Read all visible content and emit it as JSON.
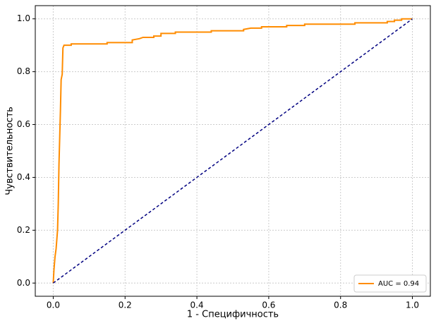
{
  "chart_data": {
    "type": "line",
    "xlabel": "1 - Специфичность",
    "ylabel": "Чувствительность",
    "xlim": [
      -0.05,
      1.05
    ],
    "ylim": [
      -0.05,
      1.05
    ],
    "xticks": [
      {
        "value": 0,
        "label": "0.0"
      },
      0.2,
      0.4,
      0.6,
      0.8,
      {
        "value": 1,
        "label": "1.0"
      }
    ],
    "yticks": [
      {
        "value": 0,
        "label": "0.0"
      },
      0.2,
      0.4,
      0.6,
      0.8,
      {
        "value": 1,
        "label": "1.0"
      }
    ],
    "grid": true,
    "legend": "lower right",
    "series": [
      {
        "name": "AUC = 0.94",
        "color": "#ff8c00",
        "dash": false,
        "x": [
          0,
          0.002,
          0.005,
          0.008,
          0.012,
          0.014,
          0.016,
          0.018,
          0.02,
          0.022,
          0.025,
          0.027,
          0.03,
          0.05,
          0.05,
          0.15,
          0.15,
          0.22,
          0.22,
          0.24,
          0.25,
          0.28,
          0.28,
          0.3,
          0.3,
          0.34,
          0.34,
          0.44,
          0.44,
          0.53,
          0.53,
          0.55,
          0.58,
          0.58,
          0.65,
          0.65,
          0.7,
          0.7,
          0.84,
          0.84,
          0.93,
          0.93,
          0.95,
          0.95,
          0.97,
          0.97,
          1
        ],
        "values": [
          0,
          0.05,
          0.1,
          0.13,
          0.2,
          0.3,
          0.45,
          0.55,
          0.65,
          0.77,
          0.79,
          0.89,
          0.9,
          0.9,
          0.905,
          0.905,
          0.91,
          0.91,
          0.92,
          0.925,
          0.93,
          0.93,
          0.935,
          0.935,
          0.945,
          0.945,
          0.95,
          0.95,
          0.955,
          0.955,
          0.96,
          0.965,
          0.965,
          0.97,
          0.97,
          0.975,
          0.975,
          0.98,
          0.98,
          0.985,
          0.985,
          0.99,
          0.99,
          0.995,
          0.995,
          1,
          1
        ]
      },
      {
        "color": "#000080",
        "dash": true,
        "x": [
          0,
          1
        ],
        "values": [
          0,
          1
        ]
      }
    ]
  }
}
